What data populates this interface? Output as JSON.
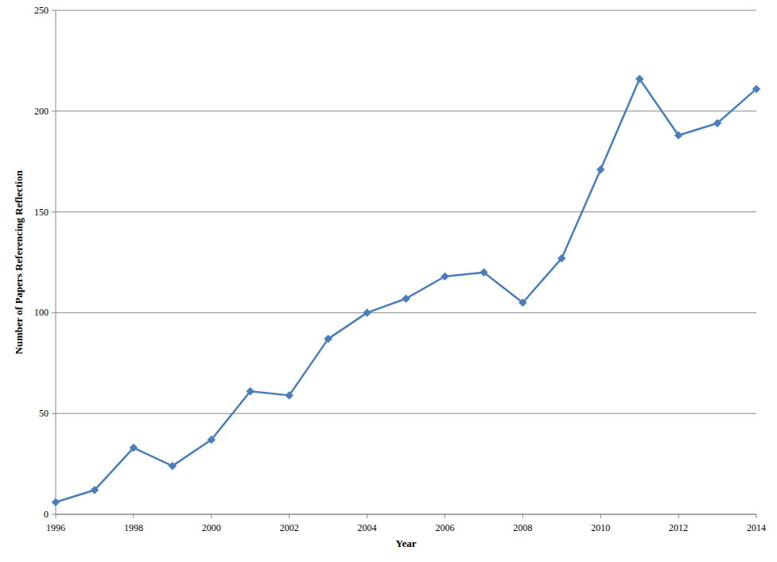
{
  "chart_data": {
    "type": "line",
    "x_label": "Year",
    "y_label": "Number of Papers Referencing Reflection",
    "x": [
      1996,
      1997,
      1998,
      1999,
      2000,
      2001,
      2002,
      2003,
      2004,
      2005,
      2006,
      2007,
      2008,
      2009,
      2010,
      2011,
      2012,
      2013,
      2014
    ],
    "values": [
      6,
      12,
      33,
      24,
      37,
      61,
      59,
      87,
      100,
      107,
      118,
      120,
      105,
      127,
      171,
      216,
      188,
      194,
      211
    ],
    "color": "#4a7ebb",
    "marker": "diamond",
    "xlim": [
      1996,
      2014
    ],
    "xticks": [
      1996,
      1998,
      2000,
      2002,
      2004,
      2006,
      2008,
      2010,
      2012,
      2014
    ],
    "ylim": [
      0,
      250
    ],
    "yticks": [
      0,
      50,
      100,
      150,
      200,
      250
    ],
    "grid": true
  }
}
